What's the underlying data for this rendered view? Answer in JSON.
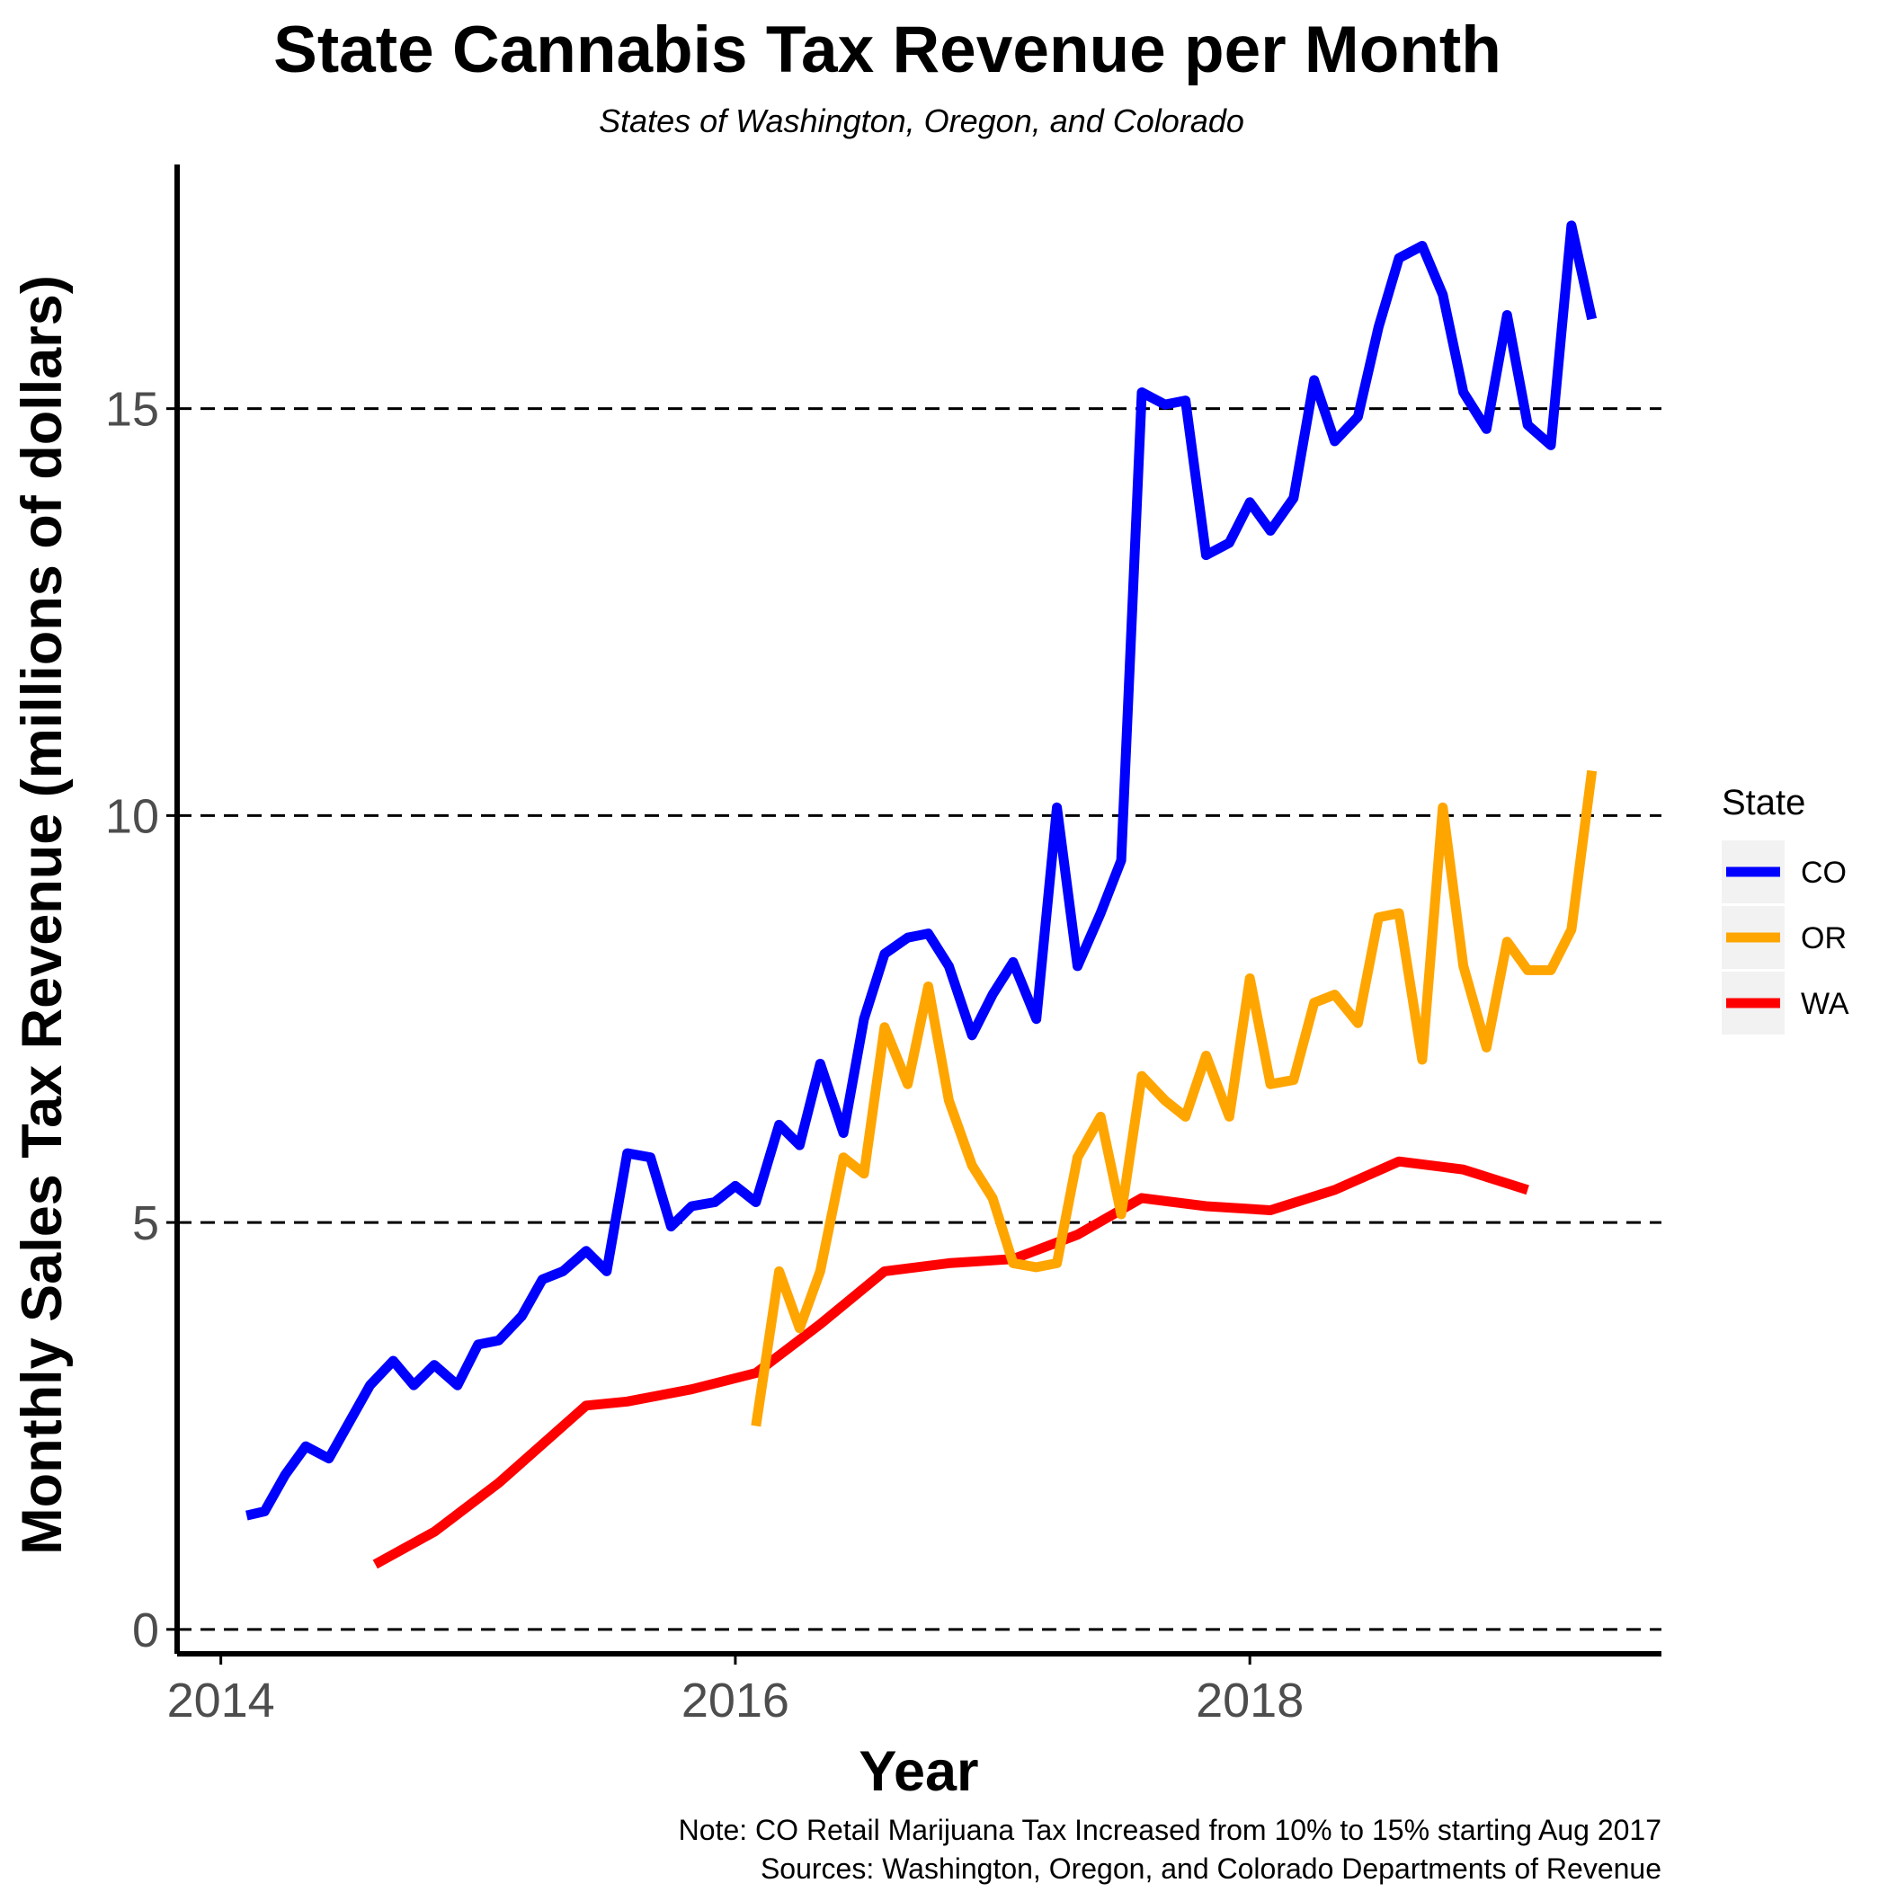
{
  "chart_data": {
    "type": "line",
    "title": "State Cannabis Tax Revenue per Month",
    "subtitle": "States of Washington, Oregon, and Colorado",
    "xlabel": "Year",
    "ylabel": "Monthly Sales Tax Revenue (millions of dollars)",
    "x_ticks": [
      {
        "value": 2014,
        "label": "2014"
      },
      {
        "value": 2016,
        "label": "2016"
      },
      {
        "value": 2018,
        "label": "2018"
      }
    ],
    "y_ticks": [
      {
        "value": 0,
        "label": "0"
      },
      {
        "value": 5,
        "label": "5"
      },
      {
        "value": 10,
        "label": "10"
      },
      {
        "value": 15,
        "label": "15"
      }
    ],
    "xlim": [
      2013.83,
      2019.6
    ],
    "ylim": [
      -0.3,
      18.0
    ],
    "grid": "dashed horizontal at y ticks",
    "legend": {
      "title": "State",
      "position": "right"
    },
    "caption": [
      "Note: CO Retail Marijuana Tax Increased from 10% to 15% starting Aug 2017",
      "Sources: Washington, Oregon, and Colorado Departments of Revenue"
    ],
    "series": [
      {
        "name": "CO",
        "color": "#0000ff",
        "x": [
          2014.1,
          2014.17,
          2014.25,
          2014.33,
          2014.42,
          2014.5,
          2014.58,
          2014.67,
          2014.75,
          2014.83,
          2014.92,
          2015.0,
          2015.08,
          2015.17,
          2015.25,
          2015.33,
          2015.42,
          2015.5,
          2015.58,
          2015.67,
          2015.75,
          2015.83,
          2015.92,
          2016.0,
          2016.08,
          2016.17,
          2016.25,
          2016.33,
          2016.42,
          2016.5,
          2016.58,
          2016.67,
          2016.75,
          2016.83,
          2016.92,
          2017.0,
          2017.08,
          2017.17,
          2017.25,
          2017.33,
          2017.42,
          2017.5,
          2017.58,
          2017.67,
          2017.75,
          2017.83,
          2017.92,
          2018.0,
          2018.08,
          2018.17,
          2018.25,
          2018.33,
          2018.42,
          2018.5,
          2018.58,
          2018.67,
          2018.75,
          2018.83,
          2018.92,
          2019.0,
          2019.08,
          2019.17,
          2019.25,
          2019.33
        ],
        "values": [
          1.4,
          1.45,
          1.9,
          2.25,
          2.1,
          2.55,
          3.0,
          3.3,
          3.0,
          3.25,
          3.0,
          3.5,
          3.55,
          3.85,
          4.3,
          4.4,
          4.65,
          4.4,
          5.85,
          5.8,
          4.95,
          5.2,
          5.25,
          5.45,
          5.25,
          6.2,
          5.95,
          6.95,
          6.1,
          7.5,
          8.3,
          8.5,
          8.55,
          8.15,
          7.3,
          7.8,
          8.2,
          7.5,
          10.1,
          8.15,
          8.8,
          9.45,
          15.2,
          15.05,
          15.1,
          13.2,
          13.35,
          13.85,
          13.5,
          13.9,
          15.35,
          14.6,
          14.9,
          16.0,
          16.85,
          17.0,
          16.4,
          15.2,
          14.75,
          16.15,
          14.8,
          14.55,
          17.25,
          16.1
        ]
      },
      {
        "name": "OR",
        "color": "#ffa500",
        "x": [
          2016.08,
          2016.17,
          2016.25,
          2016.33,
          2016.42,
          2016.5,
          2016.58,
          2016.67,
          2016.75,
          2016.83,
          2016.92,
          2017.0,
          2017.08,
          2017.17,
          2017.25,
          2017.33,
          2017.42,
          2017.5,
          2017.58,
          2017.67,
          2017.75,
          2017.83,
          2017.92,
          2018.0,
          2018.08,
          2018.17,
          2018.25,
          2018.33,
          2018.42,
          2018.5,
          2018.58,
          2018.67,
          2018.75,
          2018.83,
          2018.92,
          2019.0,
          2019.08,
          2019.17,
          2019.25,
          2019.33
        ],
        "values": [
          2.5,
          4.4,
          3.7,
          4.4,
          5.8,
          5.6,
          7.4,
          6.7,
          7.9,
          6.5,
          5.7,
          5.3,
          4.5,
          4.45,
          4.5,
          5.8,
          6.3,
          5.1,
          6.8,
          6.5,
          6.3,
          7.05,
          6.3,
          8.0,
          6.7,
          6.75,
          7.7,
          7.8,
          7.45,
          8.75,
          8.8,
          7.0,
          10.1,
          8.15,
          7.15,
          8.45,
          8.1,
          8.1,
          8.6,
          10.55
        ]
      },
      {
        "name": "WA",
        "color": "#ff0000",
        "x": [
          2014.6,
          2014.83,
          2015.08,
          2015.42,
          2015.58,
          2015.83,
          2016.08,
          2016.33,
          2016.58,
          2016.83,
          2017.08,
          2017.33,
          2017.58,
          2017.83,
          2018.08,
          2018.33,
          2018.58,
          2018.83,
          2019.08
        ],
        "values": [
          0.8,
          1.2,
          1.8,
          2.75,
          2.8,
          2.95,
          3.15,
          3.75,
          4.4,
          4.5,
          4.55,
          4.85,
          5.3,
          5.2,
          5.15,
          5.4,
          5.75,
          5.65,
          5.4
        ]
      }
    ]
  }
}
